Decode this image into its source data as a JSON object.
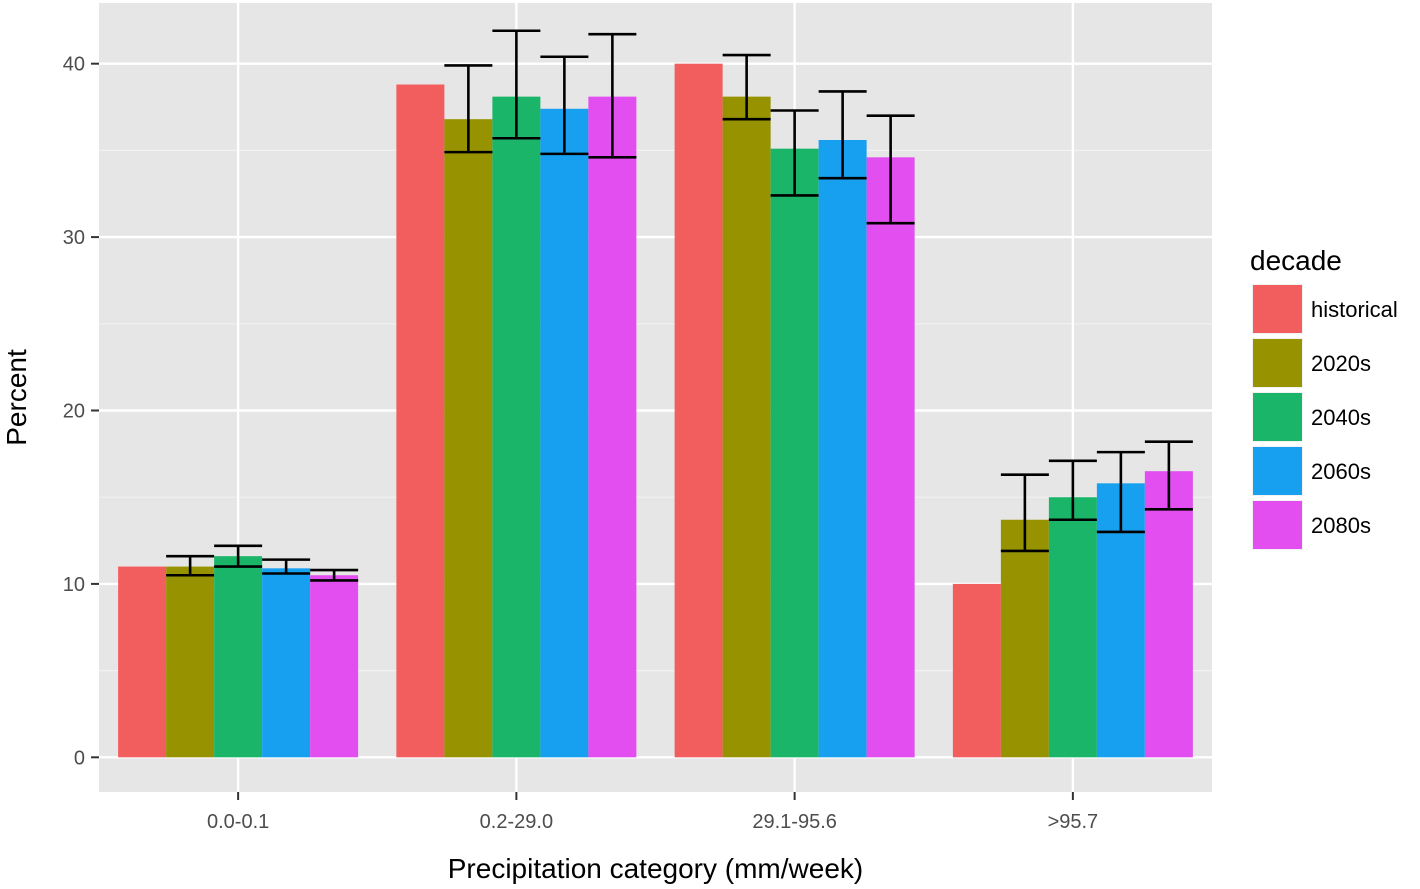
{
  "chart_data": {
    "type": "bar",
    "title": "",
    "xlabel": "Precipitation category (mm/week)",
    "ylabel": "Percent",
    "categories": [
      "0.0-0.1",
      "0.2-29.0",
      "29.1-95.6",
      ">95.7"
    ],
    "ylim": [
      -2,
      43.5
    ],
    "yticks": [
      0,
      10,
      20,
      30,
      40
    ],
    "ytick_labels": [
      "0",
      "10",
      "20",
      "30",
      "40"
    ],
    "grid": true,
    "background": "#e6e6e6",
    "legend": {
      "title": "decade",
      "position": "right"
    },
    "series": [
      {
        "name": "historical",
        "color": "#f25d5d",
        "values": [
          11.0,
          38.8,
          40.0,
          10.0
        ],
        "error_low": [
          null,
          null,
          null,
          null
        ],
        "error_high": [
          null,
          null,
          null,
          null
        ]
      },
      {
        "name": "2020s",
        "color": "#979300",
        "values": [
          11.0,
          36.8,
          38.1,
          13.7
        ],
        "error_low": [
          10.5,
          34.9,
          36.8,
          11.9
        ],
        "error_high": [
          11.6,
          39.9,
          40.5,
          16.3
        ]
      },
      {
        "name": "2040s",
        "color": "#1bb56a",
        "values": [
          11.6,
          38.1,
          35.1,
          15.0
        ],
        "error_low": [
          11.0,
          35.7,
          32.4,
          13.7
        ],
        "error_high": [
          12.2,
          41.9,
          37.3,
          17.1
        ]
      },
      {
        "name": "2060s",
        "color": "#17a0f0",
        "values": [
          10.9,
          37.4,
          35.6,
          15.8
        ],
        "error_low": [
          10.6,
          34.8,
          33.4,
          13.0
        ],
        "error_high": [
          11.4,
          40.4,
          38.4,
          17.6
        ]
      },
      {
        "name": "2080s",
        "color": "#e24ef0",
        "values": [
          10.5,
          38.1,
          34.6,
          16.5
        ],
        "error_low": [
          10.2,
          34.6,
          30.8,
          14.3
        ],
        "error_high": [
          10.8,
          41.7,
          37.0,
          18.2
        ]
      }
    ]
  }
}
